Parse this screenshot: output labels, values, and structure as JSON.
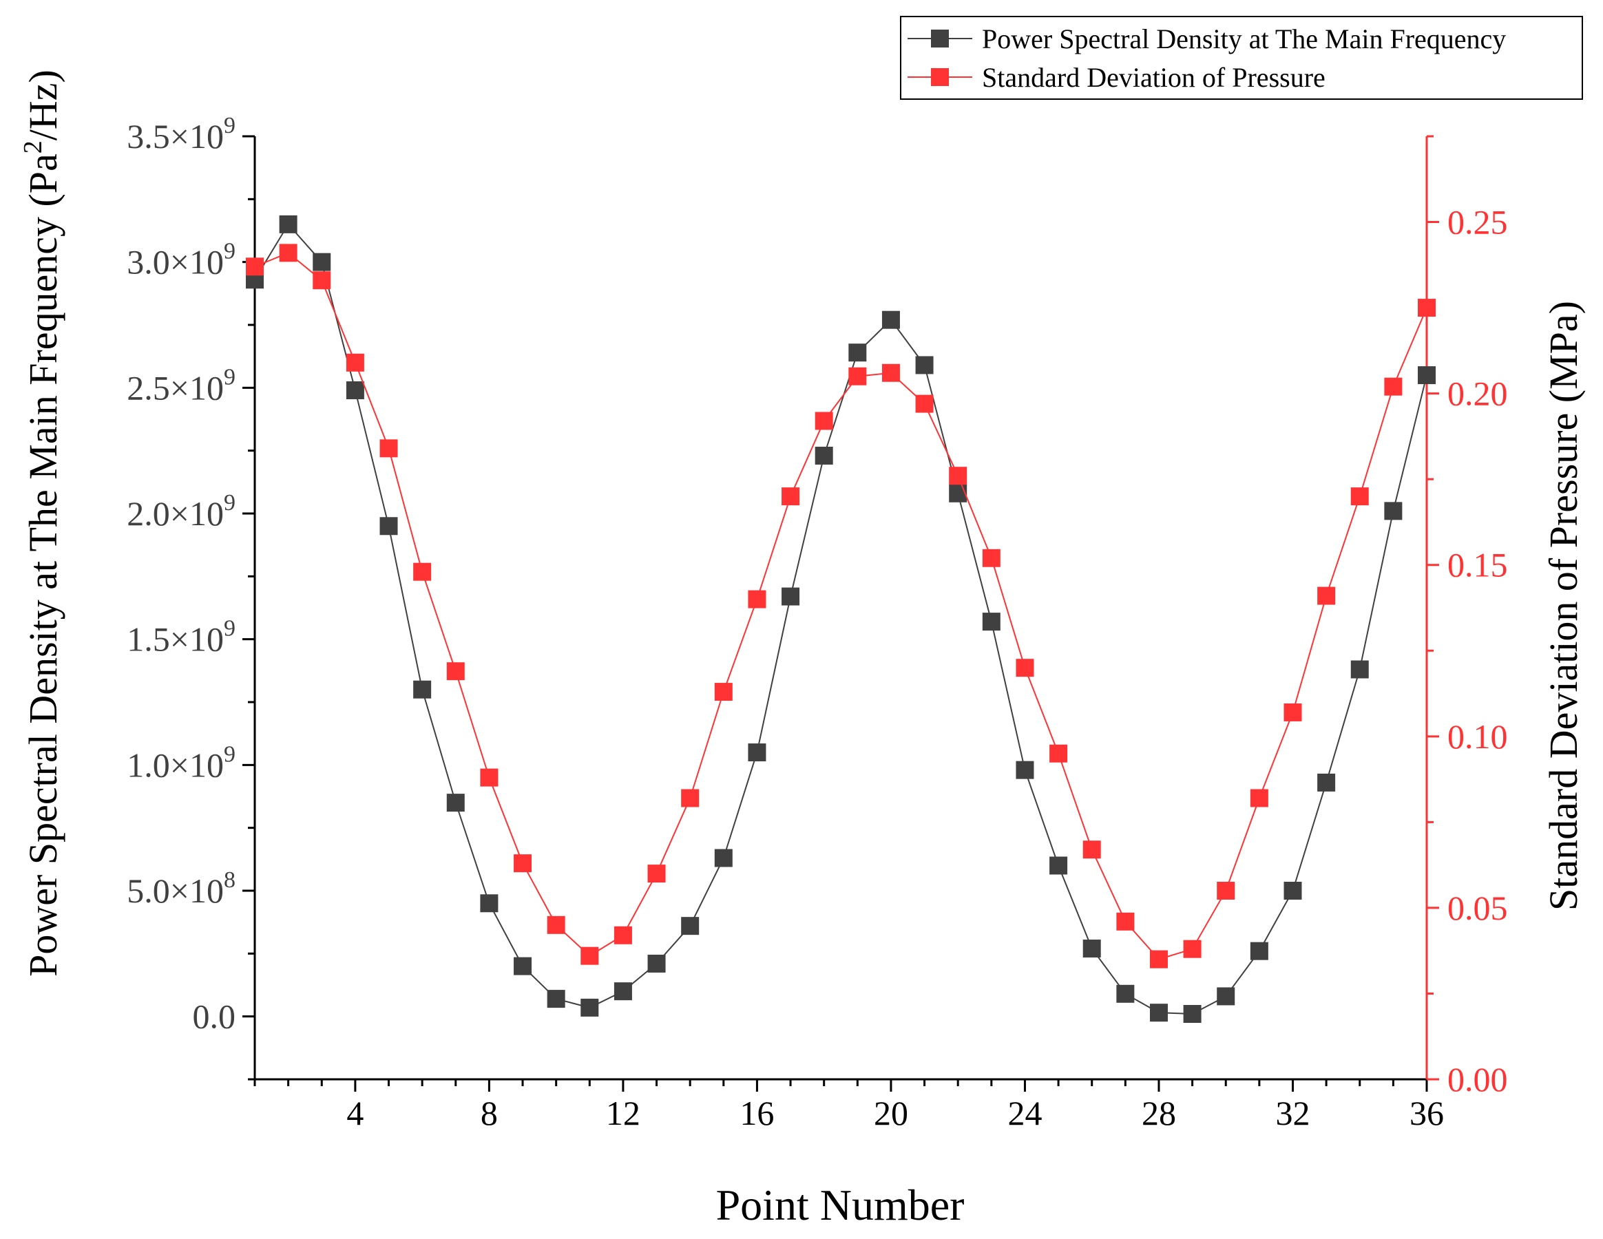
{
  "chart_data": {
    "type": "line",
    "x": [
      1,
      2,
      3,
      4,
      5,
      6,
      7,
      8,
      9,
      10,
      11,
      12,
      13,
      14,
      15,
      16,
      17,
      18,
      19,
      20,
      21,
      22,
      23,
      24,
      25,
      26,
      27,
      28,
      29,
      30,
      31,
      32,
      33,
      34,
      35,
      36
    ],
    "xlabel": "Point Number",
    "xlim": [
      1,
      36
    ],
    "xticks": [
      4,
      8,
      12,
      16,
      20,
      24,
      28,
      32,
      36
    ],
    "xtick_labels": [
      "4",
      "8",
      "12",
      "16",
      "20",
      "24",
      "28",
      "32",
      "36"
    ],
    "left_axis": {
      "label_main": "Power Spectral Density at The Main Frequency (Pa",
      "label_sup": "2",
      "label_tail": "/Hz)",
      "ylim": [
        -250000000,
        3500000000
      ],
      "ticks": [
        0,
        500000000,
        1000000000,
        1500000000,
        2000000000,
        2500000000,
        3000000000,
        3500000000
      ],
      "tick_labels": [
        {
          "mant": "0.0",
          "exp": ""
        },
        {
          "mant": "5.0×10",
          "exp": "8"
        },
        {
          "mant": "1.0×10",
          "exp": "9"
        },
        {
          "mant": "1.5×10",
          "exp": "9"
        },
        {
          "mant": "2.0×10",
          "exp": "9"
        },
        {
          "mant": "2.5×10",
          "exp": "9"
        },
        {
          "mant": "3.0×10",
          "exp": "9"
        },
        {
          "mant": "3.5×10",
          "exp": "9"
        }
      ]
    },
    "right_axis": {
      "label": "Standard Deviation of Pressure (MPa)",
      "ylim": [
        0,
        0.275
      ],
      "ticks": [
        0,
        0.05,
        0.1,
        0.15,
        0.2,
        0.25
      ],
      "tick_labels": [
        "0.00",
        "0.05",
        "0.10",
        "0.15",
        "0.20",
        "0.25"
      ]
    },
    "series": [
      {
        "name": "Power Spectral Density at The Main Frequency",
        "axis": "left",
        "color": "#404040",
        "values": [
          2930000000,
          3150000000,
          3000000000,
          2490000000,
          1950000000,
          1300000000,
          850000000,
          450000000,
          200000000,
          70000000,
          35000000,
          100000000,
          210000000,
          360000000,
          630000000,
          1050000000,
          1670000000,
          2230000000,
          2640000000,
          2770000000,
          2590000000,
          2080000000,
          1570000000,
          980000000,
          600000000,
          270000000,
          90000000,
          15000000,
          10000000,
          80000000,
          260000000,
          500000000,
          930000000,
          1380000000,
          2010000000,
          2550000000
        ]
      },
      {
        "name": "Standard Deviation of Pressure",
        "axis": "right",
        "color": "#ff3333",
        "values": [
          0.237,
          0.241,
          0.233,
          0.209,
          0.184,
          0.148,
          0.119,
          0.088,
          0.063,
          0.045,
          0.036,
          0.042,
          0.06,
          0.082,
          0.113,
          0.14,
          0.17,
          0.192,
          0.205,
          0.206,
          0.197,
          0.176,
          0.152,
          0.12,
          0.095,
          0.067,
          0.046,
          0.035,
          0.038,
          0.055,
          0.082,
          0.107,
          0.141,
          0.17,
          0.202,
          0.225
        ]
      }
    ],
    "legend": [
      "Power Spectral Density at The Main Frequency",
      "Standard Deviation of Pressure"
    ]
  }
}
